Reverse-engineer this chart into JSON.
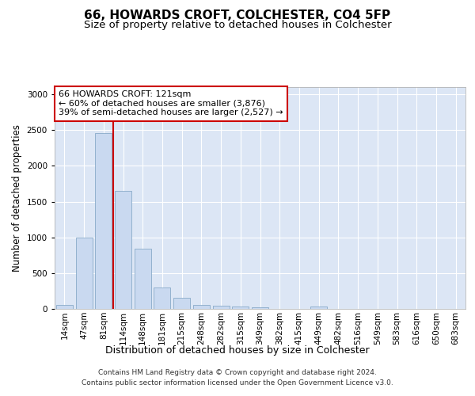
{
  "title1": "66, HOWARDS CROFT, COLCHESTER, CO4 5FP",
  "title2": "Size of property relative to detached houses in Colchester",
  "xlabel": "Distribution of detached houses by size in Colchester",
  "ylabel": "Number of detached properties",
  "categories": [
    "14sqm",
    "47sqm",
    "81sqm",
    "114sqm",
    "148sqm",
    "181sqm",
    "215sqm",
    "248sqm",
    "282sqm",
    "315sqm",
    "349sqm",
    "382sqm",
    "415sqm",
    "449sqm",
    "482sqm",
    "516sqm",
    "549sqm",
    "583sqm",
    "616sqm",
    "650sqm",
    "683sqm"
  ],
  "values": [
    60,
    1000,
    2460,
    1650,
    840,
    295,
    150,
    55,
    45,
    30,
    20,
    0,
    0,
    30,
    0,
    0,
    0,
    0,
    0,
    0,
    0
  ],
  "bar_color": "#c9d9f0",
  "bar_edge_color": "#7a9fc0",
  "vline_x_index": 3,
  "vline_color": "#cc0000",
  "annotation_text": "66 HOWARDS CROFT: 121sqm\n← 60% of detached houses are smaller (3,876)\n39% of semi-detached houses are larger (2,527) →",
  "annotation_box_color": "#ffffff",
  "annotation_box_edge": "#cc0000",
  "ylim": [
    0,
    3100
  ],
  "yticks": [
    0,
    500,
    1000,
    1500,
    2000,
    2500,
    3000
  ],
  "background_color": "#dce6f5",
  "footer_text": "Contains HM Land Registry data © Crown copyright and database right 2024.\nContains public sector information licensed under the Open Government Licence v3.0.",
  "title1_fontsize": 11,
  "title2_fontsize": 9.5,
  "xlabel_fontsize": 9,
  "ylabel_fontsize": 8.5,
  "tick_fontsize": 7.5,
  "annotation_fontsize": 8,
  "footer_fontsize": 6.5
}
